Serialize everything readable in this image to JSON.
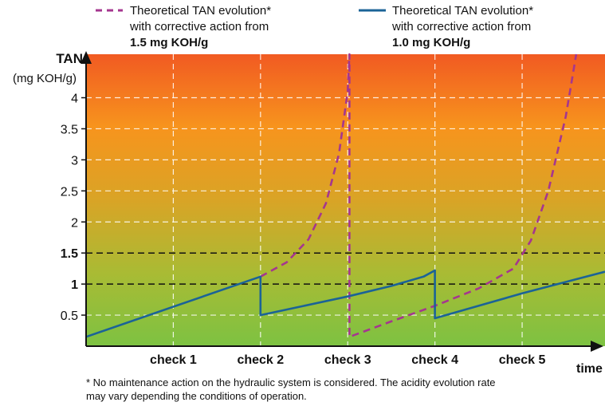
{
  "chart_data": {
    "type": "line",
    "ylabel": "TAN",
    "ylabel_unit": "(mg KOH/g)",
    "xlabel": "time",
    "ylim": [
      0,
      4.7
    ],
    "xlim": [
      0,
      5.95
    ],
    "y_ticks": [
      {
        "value": 0.5,
        "label": "0.5",
        "bold": false
      },
      {
        "value": 1,
        "label": "1",
        "bold": true
      },
      {
        "value": 1.5,
        "label": "1.5",
        "bold": true
      },
      {
        "value": 2,
        "label": "2",
        "bold": false
      },
      {
        "value": 2.5,
        "label": "2.5",
        "bold": false
      },
      {
        "value": 3,
        "label": "3",
        "bold": false
      },
      {
        "value": 3.5,
        "label": "3.5",
        "bold": false
      },
      {
        "value": 4,
        "label": "4",
        "bold": false
      }
    ],
    "x_ticks": [
      {
        "value": 1,
        "label": "check 1"
      },
      {
        "value": 2,
        "label": "check 2"
      },
      {
        "value": 3,
        "label": "check 3"
      },
      {
        "value": 4,
        "label": "check 4"
      },
      {
        "value": 5,
        "label": "check 5"
      }
    ],
    "threshold_lines": [
      1.0,
      1.5
    ],
    "background_gradient": [
      "#f15a22",
      "#f7941d",
      "#d9a426",
      "#a9bb34",
      "#7dc242"
    ],
    "legend": [
      {
        "name_line1": "Theoretical TAN evolution*",
        "name_line2": "with corrective action from",
        "name_line3": "1.5 mg KOH/g",
        "color": "#a5368f",
        "dash": true
      },
      {
        "name_line1": "Theoretical TAN evolution*",
        "name_line2": "with corrective action from",
        "name_line3": "1.0 mg KOH/g",
        "color": "#1b6397",
        "dash": false
      }
    ],
    "series": [
      {
        "name": "Theoretical TAN evolution* with corrective action from 1.5 mg KOH/g",
        "color": "#a5368f",
        "style": "dashed",
        "points": [
          [
            2.0,
            1.12
          ],
          [
            2.3,
            1.35
          ],
          [
            2.55,
            1.72
          ],
          [
            2.75,
            2.3
          ],
          [
            2.9,
            3.1
          ],
          [
            3.0,
            4.1
          ],
          [
            3.02,
            4.7
          ],
          [
            3.02,
            0.15
          ],
          [
            3.5,
            0.4
          ],
          [
            4.0,
            0.65
          ],
          [
            4.5,
            0.93
          ],
          [
            4.9,
            1.25
          ],
          [
            5.1,
            1.7
          ],
          [
            5.3,
            2.5
          ],
          [
            5.5,
            3.7
          ],
          [
            5.62,
            4.7
          ]
        ]
      },
      {
        "name": "Theoretical TAN evolution* with corrective action from 1.0 mg KOH/g",
        "color": "#1b6397",
        "style": "solid",
        "points": [
          [
            0,
            0.15
          ],
          [
            2.0,
            1.12
          ],
          [
            2.0,
            0.5
          ],
          [
            3.0,
            0.8
          ],
          [
            3.5,
            0.97
          ],
          [
            3.87,
            1.12
          ],
          [
            4.0,
            1.22
          ],
          [
            4.0,
            0.45
          ],
          [
            5.0,
            0.85
          ],
          [
            5.95,
            1.2
          ]
        ]
      }
    ]
  },
  "footnote": {
    "line1": "* No maintenance action on the hydraulic system is considered. The acidity evolution rate",
    "line2": "may vary depending the conditions of operation."
  }
}
